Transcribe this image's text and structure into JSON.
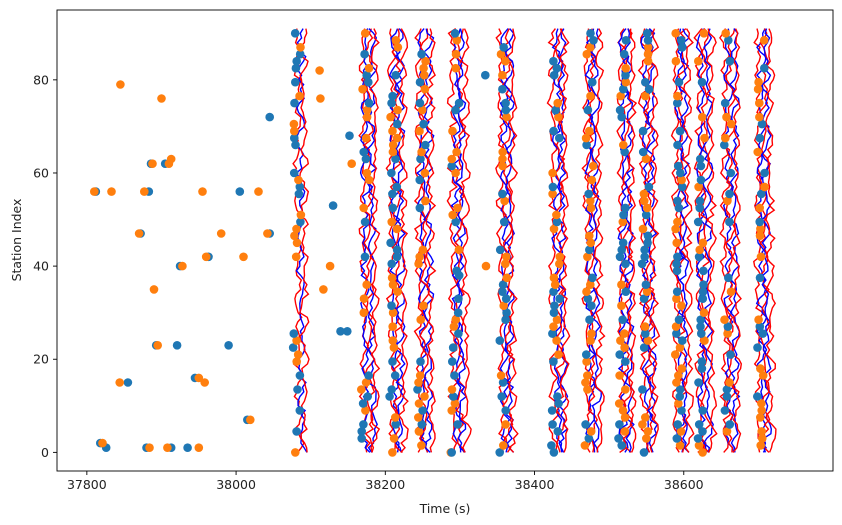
{
  "chart_data": {
    "type": "scatter",
    "title": "",
    "xlabel": "Time (s)",
    "ylabel": "Station Index",
    "xlim": [
      37760,
      38800
    ],
    "ylim": [
      -4,
      95
    ],
    "xticks": [
      37800,
      38000,
      38200,
      38400,
      38600
    ],
    "yticks": [
      0,
      20,
      40,
      60,
      80
    ],
    "grid": false,
    "colors": {
      "blue_points": "#1f77b4",
      "orange_points": "#ff7f0e",
      "blue_traces": "#0000ff",
      "red_traces": "#ff0000"
    },
    "scattered_picks_blue": [
      [
        37812,
        56
      ],
      [
        37818,
        2
      ],
      [
        37826,
        1
      ],
      [
        37855,
        15
      ],
      [
        37872,
        47
      ],
      [
        37880,
        1
      ],
      [
        37883,
        56
      ],
      [
        37886,
        62
      ],
      [
        37893,
        23
      ],
      [
        37905,
        62
      ],
      [
        37913,
        1
      ],
      [
        37921,
        23
      ],
      [
        37925,
        40
      ],
      [
        37935,
        1
      ],
      [
        37945,
        16
      ],
      [
        37963,
        42
      ],
      [
        37990,
        23
      ],
      [
        38005,
        56
      ],
      [
        38015,
        7
      ],
      [
        38045,
        47
      ],
      [
        38045,
        72
      ],
      [
        38130,
        53
      ],
      [
        38140,
        26
      ],
      [
        38149,
        26
      ],
      [
        38152,
        68
      ],
      [
        38289,
        0
      ],
      [
        38299,
        38
      ],
      [
        38334,
        81
      ]
    ],
    "scattered_picks_orange": [
      [
        37810,
        56
      ],
      [
        37821,
        2
      ],
      [
        37833,
        56
      ],
      [
        37844,
        15
      ],
      [
        37845,
        79
      ],
      [
        37870,
        47
      ],
      [
        37877,
        56
      ],
      [
        37884,
        1
      ],
      [
        37888,
        62
      ],
      [
        37890,
        35
      ],
      [
        37895,
        23
      ],
      [
        37900,
        76
      ],
      [
        37908,
        1
      ],
      [
        37910,
        62
      ],
      [
        37913,
        63
      ],
      [
        37928,
        40
      ],
      [
        37950,
        16
      ],
      [
        37950,
        1
      ],
      [
        37955,
        56
      ],
      [
        37958,
        15
      ],
      [
        37960,
        42
      ],
      [
        37980,
        47
      ],
      [
        38010,
        42
      ],
      [
        38019,
        7
      ],
      [
        38030,
        56
      ],
      [
        38042,
        47
      ],
      [
        38112,
        82
      ],
      [
        38113,
        76
      ],
      [
        38117,
        35
      ],
      [
        38126,
        40
      ],
      [
        38155,
        62
      ],
      [
        38335,
        40
      ]
    ],
    "event_bands_s": [
      38088,
      38180,
      38218,
      38255,
      38300,
      38365,
      38435,
      38480,
      38525,
      38555,
      38600,
      38630,
      38665,
      38710
    ]
  }
}
